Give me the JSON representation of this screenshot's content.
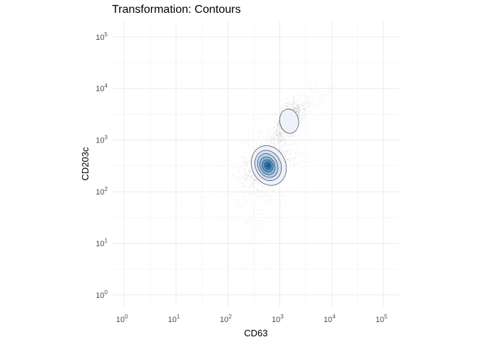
{
  "chart_data": {
    "type": "scatter",
    "title": "Transformation: Contours",
    "xlabel": "CD63",
    "ylabel": "CD203c",
    "x_scale": "log10",
    "y_scale": "log10",
    "xlim": [
      0.6,
      200000
    ],
    "ylim": [
      0.6,
      200000
    ],
    "x_ticks": [
      1,
      10,
      100,
      1000,
      10000,
      100000
    ],
    "y_ticks": [
      1,
      10,
      100,
      1000,
      10000,
      100000
    ],
    "tick_labels": {
      "base": "10",
      "exponents": [
        "0",
        "1",
        "2",
        "3",
        "4",
        "5"
      ]
    },
    "grid": true,
    "legend": "none",
    "background_points_color": "#9e9e9e",
    "contour_fill_colors": [
      "#eef1f8",
      "#d6e2f1",
      "#b8d0e8",
      "#8db8db",
      "#5a9ccb",
      "#2f7fbb",
      "#1a63a6"
    ],
    "contour_line_color": "#1b2a44",
    "populations": [
      {
        "label": "main",
        "center": [
          600,
          330
        ],
        "contour_levels": [
          {
            "level": 1,
            "x_range": [
              290,
              1300
            ],
            "y_range": [
              130,
              800
            ]
          },
          {
            "level": 2,
            "x_range": [
              340,
              1050
            ],
            "y_range": [
              160,
              650
            ]
          },
          {
            "level": 3,
            "x_range": [
              380,
              900
            ],
            "y_range": [
              185,
              560
            ]
          },
          {
            "level": 4,
            "x_range": [
              420,
              800
            ],
            "y_range": [
              210,
              480
            ]
          },
          {
            "level": 5,
            "x_range": [
              460,
              740
            ],
            "y_range": [
              240,
              420
            ]
          },
          {
            "level": 6,
            "x_range": [
              510,
              680
            ],
            "y_range": [
              270,
              380
            ]
          },
          {
            "level": 7,
            "x_range": [
              555,
              645
            ],
            "y_range": [
              300,
              345
            ]
          }
        ]
      },
      {
        "label": "upper",
        "center": [
          1600,
          2300
        ],
        "contour_levels": [
          {
            "level": 1,
            "x_range": [
              1000,
              2300
            ],
            "y_range": [
              1350,
              4000
            ]
          }
        ]
      }
    ]
  }
}
